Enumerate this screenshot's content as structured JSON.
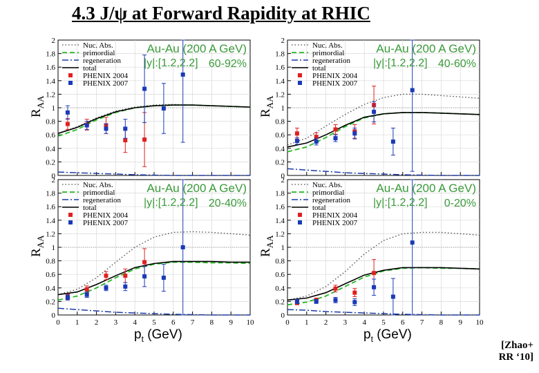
{
  "title": "4.3 J/ψ at Forward Rapidity at RHIC",
  "citation": [
    "[Zhao+",
    "RR ‘10]"
  ],
  "colors": {
    "nuc_abs": "#444444",
    "primordial": "#22bb22",
    "regeneration": "#1a3aa8",
    "total": "#000000",
    "phenix2004": "#e02020",
    "phenix2007": "#1a3ab8",
    "label_green": "#3a9a3a"
  },
  "axes": {
    "x_ticks": [
      "0",
      "1",
      "2",
      "3",
      "4",
      "5",
      "6",
      "7",
      "8",
      "9",
      "10"
    ],
    "y_ticks": [
      "0",
      "0.2",
      "0.4",
      "0.6",
      "0.8",
      "1",
      "1.2",
      "1.4",
      "1.6",
      "1.8",
      "2"
    ],
    "x_label_main": "p",
    "x_label_sub": "t",
    "x_label_rest": " (GeV)",
    "y_label_main": "R",
    "y_label_sub": "AA",
    "xlim": [
      0,
      10
    ],
    "ylim": [
      0,
      2
    ]
  },
  "legend": [
    "Nuc. Abs.",
    "primordial",
    "regeneration",
    "total",
    "PHENIX 2004",
    "PHENIX 2007"
  ],
  "chart_data": [
    {
      "type": "line",
      "title": "Au-Au (200 A GeV)",
      "rapidity": "|y|:[1.2,2.2]",
      "centrality": "60-92%",
      "series": [
        {
          "name": "Nuc. Abs.",
          "x": [
            0,
            1,
            2,
            3,
            4,
            5,
            6,
            7,
            8,
            9,
            10
          ],
          "y": [
            0.62,
            0.72,
            0.85,
            0.95,
            1.01,
            1.04,
            1.05,
            1.04,
            1.03,
            1.02,
            1.01
          ]
        },
        {
          "name": "primordial",
          "x": [
            0,
            1,
            2,
            3,
            4,
            5,
            6,
            7,
            8,
            9,
            10
          ],
          "y": [
            0.58,
            0.68,
            0.82,
            0.93,
            1.0,
            1.03,
            1.04,
            1.04,
            1.03,
            1.02,
            1.01
          ]
        },
        {
          "name": "regeneration",
          "x": [
            0,
            1,
            2,
            3,
            4,
            5,
            6,
            7,
            8,
            9,
            10
          ],
          "y": [
            0.05,
            0.04,
            0.03,
            0.02,
            0.01,
            0.005,
            0,
            0,
            0,
            0,
            0
          ]
        },
        {
          "name": "total",
          "x": [
            0,
            1,
            2,
            3,
            4,
            5,
            6,
            7,
            8,
            9,
            10
          ],
          "y": [
            0.62,
            0.71,
            0.84,
            0.94,
            1.0,
            1.03,
            1.04,
            1.04,
            1.03,
            1.02,
            1.01
          ]
        }
      ],
      "points": [
        {
          "name": "PHENIX 2004",
          "x": [
            0.5,
            1.5,
            2.5,
            3.5,
            4.5
          ],
          "y": [
            0.76,
            0.75,
            0.74,
            0.52,
            0.53
          ],
          "err": [
            0.08,
            0.08,
            0.12,
            0.18,
            0.4
          ]
        },
        {
          "name": "PHENIX 2007",
          "x": [
            0.5,
            1.5,
            2.5,
            3.5,
            4.5,
            5.5,
            6.5
          ],
          "y": [
            0.93,
            0.74,
            0.69,
            0.69,
            1.28,
            0.99,
            1.49
          ],
          "err": [
            0.1,
            0.06,
            0.07,
            0.14,
            0.5,
            0.37,
            1.0
          ]
        }
      ]
    },
    {
      "type": "line",
      "title": "Au-Au (200 A GeV)",
      "rapidity": "|y|:[1.2,2.2]",
      "centrality": "40-60%",
      "series": [
        {
          "name": "Nuc. Abs.",
          "x": [
            0,
            1,
            2,
            3,
            4,
            5,
            6,
            7,
            8,
            9,
            10
          ],
          "y": [
            0.45,
            0.55,
            0.73,
            0.9,
            1.05,
            1.15,
            1.2,
            1.2,
            1.18,
            1.16,
            1.14
          ]
        },
        {
          "name": "primordial",
          "x": [
            0,
            1,
            2,
            3,
            4,
            5,
            6,
            7,
            8,
            9,
            10
          ],
          "y": [
            0.35,
            0.42,
            0.56,
            0.72,
            0.85,
            0.91,
            0.93,
            0.93,
            0.92,
            0.91,
            0.9
          ]
        },
        {
          "name": "regeneration",
          "x": [
            0,
            1,
            2,
            3,
            4,
            5,
            6,
            7,
            8,
            9,
            10
          ],
          "y": [
            0.1,
            0.08,
            0.06,
            0.04,
            0.03,
            0.02,
            0.01,
            0.005,
            0,
            0,
            0
          ]
        },
        {
          "name": "total",
          "x": [
            0,
            1,
            2,
            3,
            4,
            5,
            6,
            7,
            8,
            9,
            10
          ],
          "y": [
            0.42,
            0.48,
            0.6,
            0.74,
            0.86,
            0.91,
            0.93,
            0.93,
            0.92,
            0.91,
            0.9
          ]
        }
      ],
      "points": [
        {
          "name": "PHENIX 2004",
          "x": [
            0.5,
            1.5,
            2.5,
            3.5,
            4.5
          ],
          "y": [
            0.62,
            0.57,
            0.68,
            0.65,
            1.04
          ],
          "err": [
            0.08,
            0.06,
            0.07,
            0.1,
            0.28
          ]
        },
        {
          "name": "PHENIX 2007",
          "x": [
            0.5,
            1.5,
            2.5,
            3.5,
            4.5,
            5.5,
            6.5
          ],
          "y": [
            0.51,
            0.5,
            0.55,
            0.62,
            0.94,
            0.5,
            1.26
          ],
          "err": [
            0.05,
            0.05,
            0.05,
            0.08,
            0.15,
            0.2,
            1.2
          ]
        }
      ]
    },
    {
      "type": "line",
      "title": "Au-Au (200 A GeV)",
      "rapidity": "|y|:[1.2,2.2]",
      "centrality": "20-40%",
      "series": [
        {
          "name": "Nuc. Abs.",
          "x": [
            0,
            1,
            2,
            3,
            4,
            5,
            6,
            7,
            8,
            9,
            10
          ],
          "y": [
            0.3,
            0.38,
            0.55,
            0.78,
            1.0,
            1.15,
            1.22,
            1.23,
            1.22,
            1.2,
            1.18
          ]
        },
        {
          "name": "primordial",
          "x": [
            0,
            1,
            2,
            3,
            4,
            5,
            6,
            7,
            8,
            9,
            10
          ],
          "y": [
            0.22,
            0.28,
            0.4,
            0.55,
            0.68,
            0.75,
            0.78,
            0.78,
            0.77,
            0.77,
            0.76
          ]
        },
        {
          "name": "regeneration",
          "x": [
            0,
            1,
            2,
            3,
            4,
            5,
            6,
            7,
            8,
            9,
            10
          ],
          "y": [
            0.1,
            0.08,
            0.06,
            0.04,
            0.03,
            0.02,
            0.01,
            0.005,
            0,
            0,
            0
          ]
        },
        {
          "name": "total",
          "x": [
            0,
            1,
            2,
            3,
            4,
            5,
            6,
            7,
            8,
            9,
            10
          ],
          "y": [
            0.3,
            0.34,
            0.45,
            0.58,
            0.7,
            0.76,
            0.79,
            0.79,
            0.79,
            0.78,
            0.78
          ]
        }
      ],
      "points": [
        {
          "name": "PHENIX 2004",
          "x": [
            0.5,
            1.5,
            2.5,
            3.5,
            4.5
          ],
          "y": [
            0.27,
            0.38,
            0.58,
            0.58,
            0.78
          ],
          "err": [
            0.04,
            0.05,
            0.06,
            0.1,
            0.2
          ]
        },
        {
          "name": "PHENIX 2007",
          "x": [
            0.5,
            1.5,
            2.5,
            3.5,
            4.5,
            5.5,
            6.5
          ],
          "y": [
            0.26,
            0.3,
            0.4,
            0.42,
            0.57,
            0.55,
            1.0
          ],
          "err": [
            0.04,
            0.04,
            0.04,
            0.06,
            0.15,
            0.2,
            1.0
          ]
        }
      ]
    },
    {
      "type": "line",
      "title": "Au-Au (200 A GeV)",
      "rapidity": "|y|:[1.2,2.2]",
      "centrality": "0-20%",
      "series": [
        {
          "name": "Nuc. Abs.",
          "x": [
            0,
            1,
            2,
            3,
            4,
            5,
            6,
            7,
            8,
            9,
            10
          ],
          "y": [
            0.22,
            0.28,
            0.42,
            0.64,
            0.9,
            1.1,
            1.2,
            1.22,
            1.22,
            1.2,
            1.18
          ]
        },
        {
          "name": "primordial",
          "x": [
            0,
            1,
            2,
            3,
            4,
            5,
            6,
            7,
            8,
            9,
            10
          ],
          "y": [
            0.15,
            0.19,
            0.28,
            0.42,
            0.56,
            0.65,
            0.69,
            0.7,
            0.69,
            0.69,
            0.68
          ]
        },
        {
          "name": "regeneration",
          "x": [
            0,
            1,
            2,
            3,
            4,
            5,
            6,
            7,
            8,
            9,
            10
          ],
          "y": [
            0.08,
            0.07,
            0.05,
            0.04,
            0.03,
            0.02,
            0.01,
            0.005,
            0,
            0,
            0
          ]
        },
        {
          "name": "total",
          "x": [
            0,
            1,
            2,
            3,
            4,
            5,
            6,
            7,
            8,
            9,
            10
          ],
          "y": [
            0.22,
            0.25,
            0.33,
            0.46,
            0.59,
            0.66,
            0.7,
            0.7,
            0.7,
            0.69,
            0.68
          ]
        }
      ],
      "points": [
        {
          "name": "PHENIX 2004",
          "x": [
            0.5,
            1.5,
            2.5,
            3.5,
            4.5
          ],
          "y": [
            0.18,
            0.22,
            0.39,
            0.33,
            0.62
          ],
          "err": [
            0.03,
            0.03,
            0.05,
            0.06,
            0.2
          ]
        },
        {
          "name": "PHENIX 2007",
          "x": [
            0.5,
            1.5,
            2.5,
            3.5,
            4.5,
            5.5,
            6.5
          ],
          "y": [
            0.2,
            0.2,
            0.22,
            0.19,
            0.41,
            0.27,
            1.07
          ],
          "err": [
            0.03,
            0.03,
            0.04,
            0.05,
            0.12,
            0.27,
            1.07
          ]
        }
      ]
    }
  ]
}
